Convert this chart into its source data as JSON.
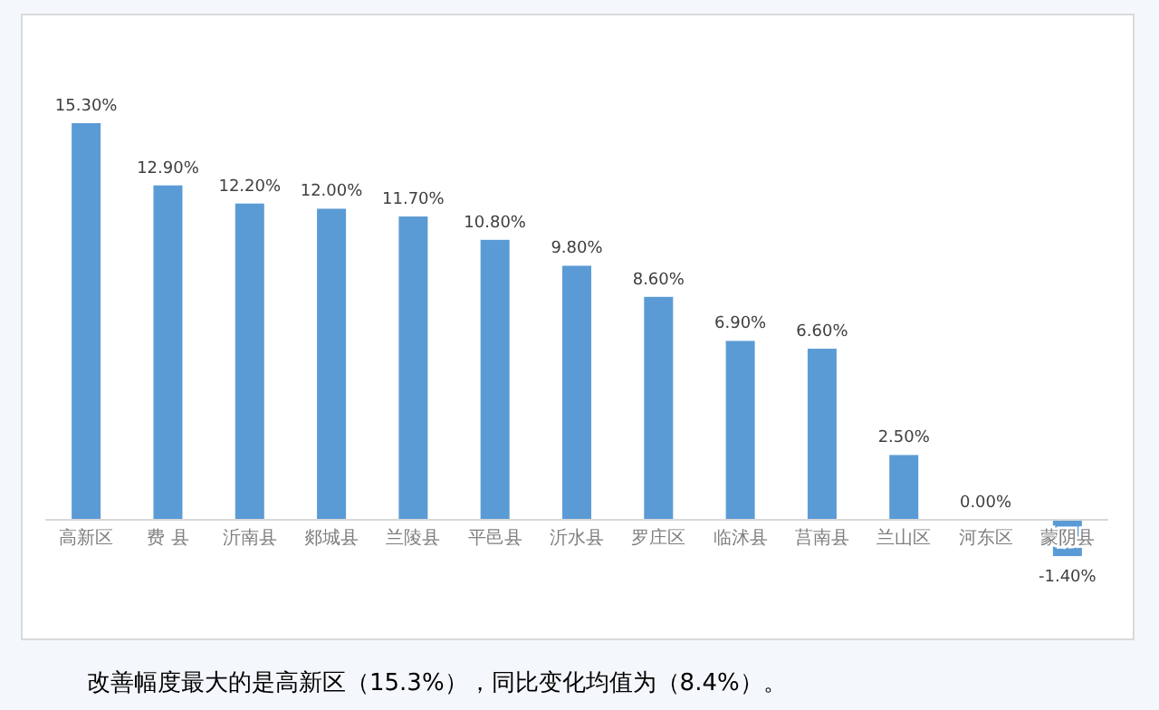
{
  "chart_data": {
    "type": "bar",
    "categories": [
      "高新区",
      "费 县",
      "沂南县",
      "郯城县",
      "兰陵县",
      "平邑县",
      "沂水县",
      "罗庄区",
      "临沭县",
      "莒南县",
      "兰山区",
      "河东区",
      "蒙阴县"
    ],
    "values": [
      15.3,
      12.9,
      12.2,
      12.0,
      11.7,
      10.8,
      9.8,
      8.6,
      6.9,
      6.6,
      2.5,
      0.0,
      -1.4
    ],
    "value_labels": [
      "15.30%",
      "12.90%",
      "12.20%",
      "12.00%",
      "11.70%",
      "10.80%",
      "9.80%",
      "8.60%",
      "6.90%",
      "6.60%",
      "2.50%",
      "0.00%",
      "-1.40%"
    ],
    "color": "#5b9bd5",
    "annotations": [
      "改善幅度最大的是高新区（15.3%），同比变化均值为（8.4%）。"
    ]
  }
}
